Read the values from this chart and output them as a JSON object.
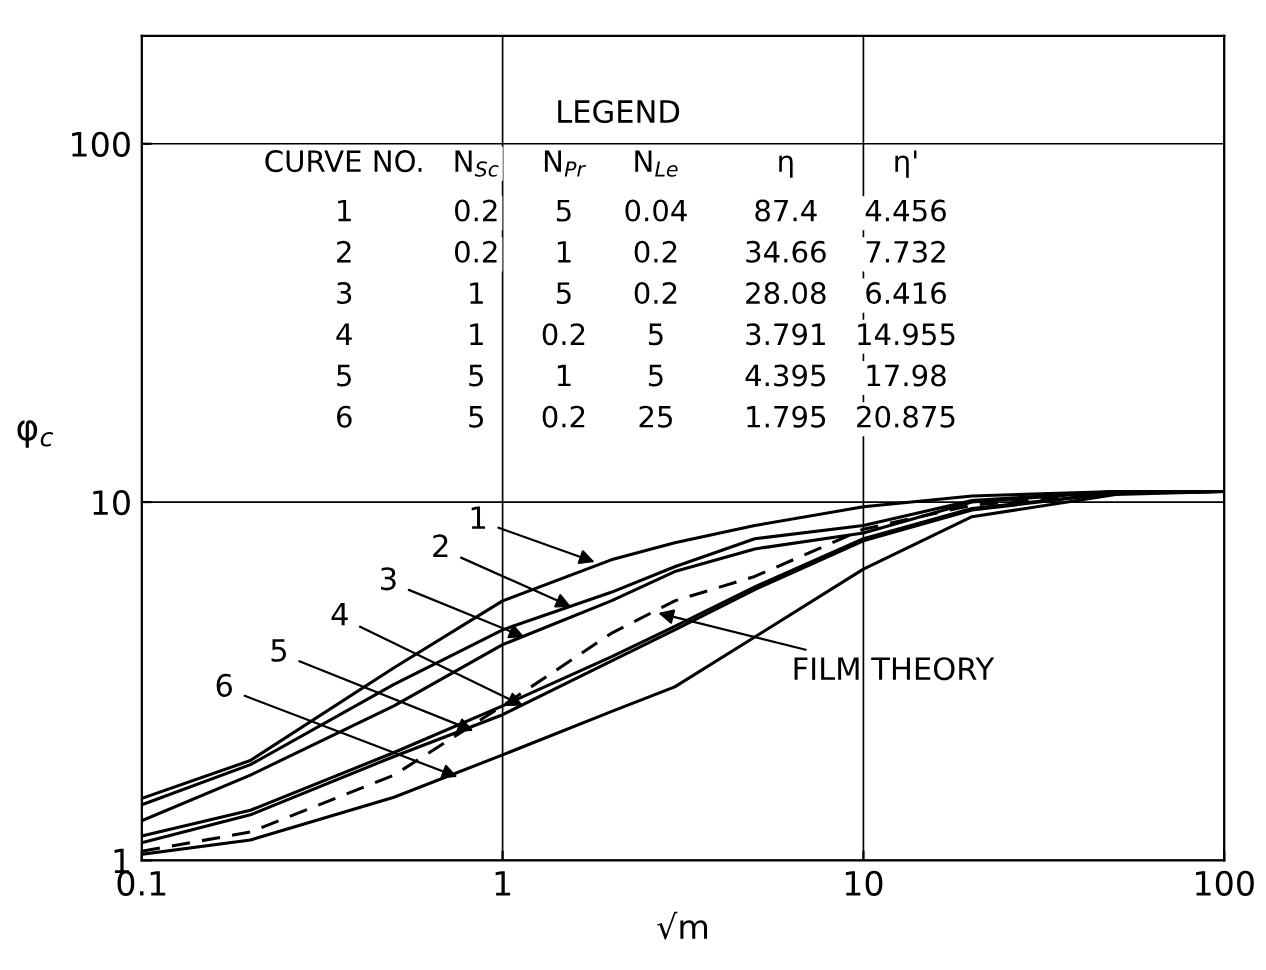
{
  "chart_data": {
    "type": "line",
    "xlabel": "√m",
    "ylabel": "φ$_{c}$",
    "legend_title": "LEGEND",
    "x": [
      0.1,
      0.2,
      0.5,
      1,
      2,
      3,
      5,
      10,
      20,
      50,
      100
    ],
    "series": [
      {
        "color": "#000000",
        "values": [
          1.49,
          1.9,
          3.45,
          5.3,
          6.9,
          7.7,
          8.6,
          9.7,
          10.4,
          10.7,
          10.7
        ]
      },
      {
        "color": "#000000",
        "values": [
          1.43,
          1.85,
          3.1,
          4.4,
          5.6,
          6.6,
          7.9,
          8.6,
          10.1,
          10.7,
          10.7
        ]
      },
      {
        "color": "#000000",
        "values": [
          1.29,
          1.73,
          2.7,
          4.0,
          5.3,
          6.4,
          7.4,
          8.2,
          10.0,
          10.7,
          10.7
        ]
      },
      {
        "color": "#000000",
        "values": [
          1.17,
          1.38,
          2.0,
          2.7,
          3.7,
          4.5,
          5.8,
          7.9,
          9.6,
          10.6,
          10.7
        ]
      },
      {
        "color": "#000000",
        "values": [
          1.12,
          1.34,
          1.95,
          2.55,
          3.6,
          4.4,
          5.7,
          7.8,
          9.5,
          10.6,
          10.7
        ]
      },
      {
        "color": "#000000",
        "values": [
          1.04,
          1.14,
          1.5,
          1.97,
          2.6,
          3.05,
          4.2,
          6.5,
          9.1,
          10.5,
          10.7
        ]
      },
      {
        "color": "#000000",
        "line_style": "dashed",
        "values": [
          1.06,
          1.2,
          1.73,
          2.7,
          4.3,
          5.3,
          6.2,
          8.4,
          9.8,
          10.6,
          10.7
        ]
      }
    ],
    "annotations": [
      "CURVE NO.",
      "N$_{Sc}$",
      "N$_{Pr}$",
      "N$_{Le}$",
      "η",
      "η'",
      "1",
      "0.2",
      "5",
      "0.04",
      "87.4",
      "4.456",
      "2",
      "0.2",
      "1",
      "0.2",
      "34.66",
      "7.732",
      "3",
      "1",
      "5",
      "0.2",
      "28.08",
      "6.416",
      "4",
      "1",
      "0.2",
      "5",
      "3.791",
      "14.955",
      "5",
      "5",
      "1",
      "5",
      "4.395",
      "17.98",
      "6",
      "5",
      "0.2",
      "25",
      "1.795",
      "20.875",
      {
        "text": "1",
        "x": 1.8,
        "y": 6.8
      },
      {
        "text": "2",
        "x": 1.55,
        "y": 5.1
      },
      {
        "text": "3",
        "x": 1.15,
        "y": 4.2
      },
      {
        "text": "4",
        "x": 1.14,
        "y": 2.7
      },
      {
        "text": "5",
        "x": 0.83,
        "y": 2.3
      },
      {
        "text": "6",
        "x": 0.75,
        "y": 1.71
      },
      {
        "text": "FILM THEORY",
        "x": 2.7,
        "y": 4.9
      }
    ],
    "log": "xy",
    "xlim": [
      0.1,
      100
    ],
    "ylim": [
      1,
      200
    ],
    "xticks": [
      {
        "value": 0.1,
        "label": "0.1"
      },
      1,
      10,
      100
    ],
    "yticks": [
      1,
      10,
      100
    ],
    "grid": true,
    "marker": "none",
    "line_style": "solid"
  }
}
